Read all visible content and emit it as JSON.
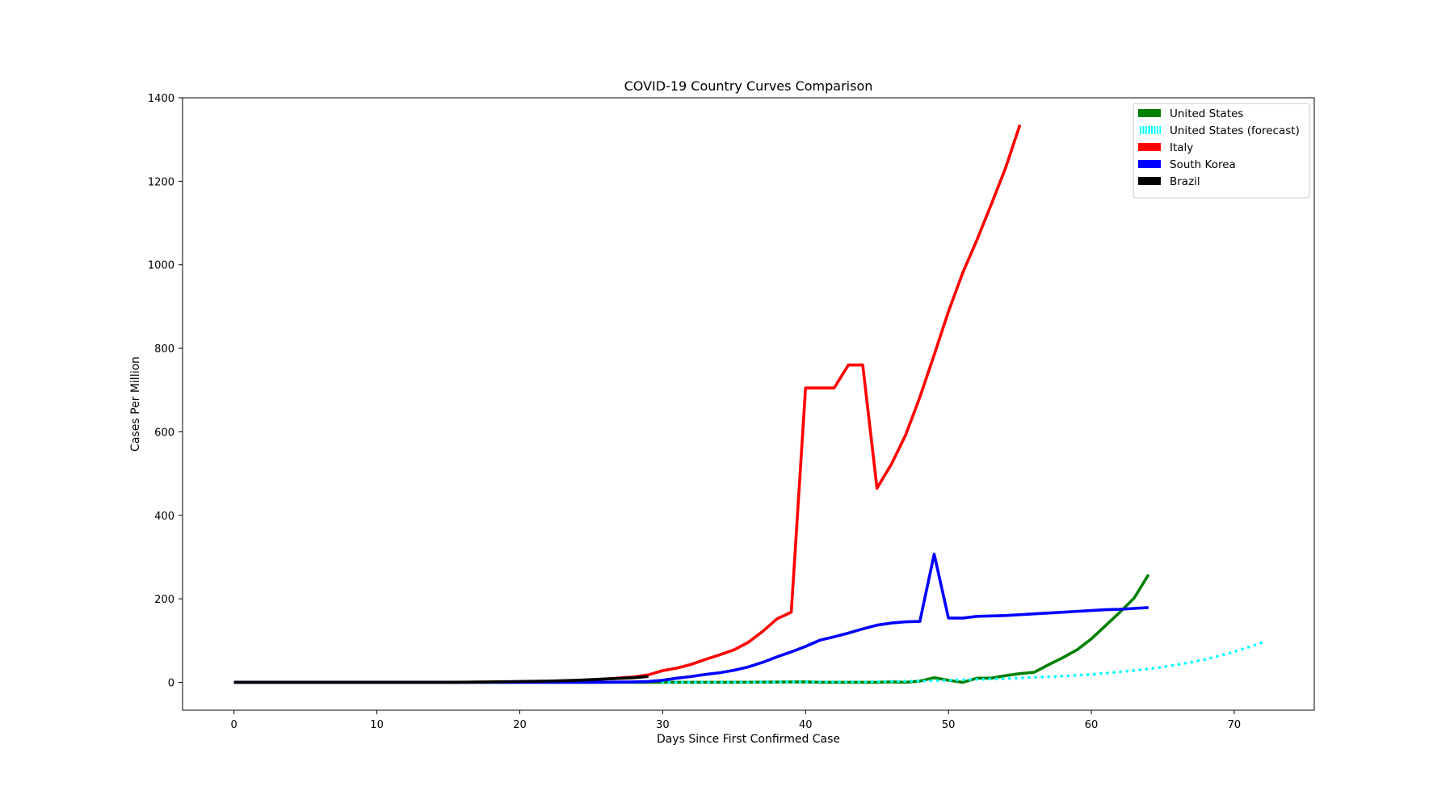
{
  "chart_data": {
    "type": "line",
    "title": "COVID-19 Country Curves Comparison",
    "xlabel": "Days Since First Confirmed Case",
    "ylabel": "Cases Per Million",
    "xlim": [
      -3.6,
      75.6
    ],
    "ylim": [
      -66.8,
      1400
    ],
    "xticks": [
      0,
      10,
      20,
      30,
      40,
      50,
      60,
      70
    ],
    "yticks": [
      0,
      200,
      400,
      600,
      800,
      1000,
      1200,
      1400
    ],
    "grid": false,
    "legend_position": "top-right",
    "series": [
      {
        "name": "United States",
        "color": "#008000",
        "style": "solid",
        "x": [
          0,
          5,
          10,
          15,
          20,
          25,
          30,
          35,
          40,
          41,
          42,
          43,
          44,
          45,
          46,
          47,
          48,
          49,
          50,
          51,
          52,
          53,
          54,
          55,
          56,
          57,
          58,
          59,
          60,
          61,
          62,
          63,
          64
        ],
        "y": [
          0,
          0,
          0,
          0,
          0,
          0,
          0,
          0,
          1,
          0,
          0,
          0,
          0,
          0,
          1,
          0,
          3,
          11,
          5,
          0,
          10,
          10,
          16,
          21,
          24,
          42,
          59,
          78,
          104,
          136,
          168,
          202,
          258
        ]
      },
      {
        "name": "United States (forecast)",
        "color": "#00ffff",
        "style": "dotted",
        "x": [
          30,
          35,
          40,
          44,
          46,
          48,
          50,
          52,
          54,
          56,
          58,
          60,
          62,
          64,
          66,
          68,
          70,
          72
        ],
        "y": [
          0,
          0,
          1,
          1,
          2,
          3,
          5,
          7,
          9,
          12,
          15,
          19,
          25,
          32,
          42,
          55,
          73,
          96
        ]
      },
      {
        "name": "Italy",
        "color": "#ff0000",
        "style": "solid",
        "x": [
          0,
          5,
          10,
          15,
          20,
          22,
          24,
          26,
          28,
          29,
          30,
          31,
          32,
          33,
          34,
          35,
          36,
          37,
          38,
          39,
          40,
          41,
          42,
          43,
          44,
          45,
          46,
          47,
          48,
          49,
          50,
          51,
          52,
          53,
          54,
          55
        ],
        "y": [
          0,
          0,
          0,
          0,
          1,
          2,
          4,
          8,
          13,
          18,
          28,
          34,
          43,
          55,
          66,
          78,
          96,
          122,
          152,
          168,
          705,
          705,
          705,
          760,
          760,
          465,
          522,
          592,
          683,
          784,
          888,
          981,
          1060,
          1145,
          1232,
          1335
        ]
      },
      {
        "name": "South Korea",
        "color": "#0000ff",
        "style": "solid",
        "x": [
          0,
          5,
          10,
          15,
          20,
          25,
          28,
          29,
          30,
          31,
          32,
          33,
          34,
          35,
          36,
          37,
          38,
          39,
          40,
          41,
          42,
          43,
          44,
          45,
          46,
          47,
          48,
          49,
          50,
          51,
          52,
          53,
          54,
          55,
          56,
          57,
          58,
          59,
          60,
          61,
          62,
          63,
          64
        ],
        "y": [
          0,
          0,
          0,
          0,
          0,
          0,
          1,
          2,
          5,
          10,
          14,
          19,
          23,
          29,
          37,
          48,
          61,
          73,
          86,
          101,
          109,
          118,
          128,
          137,
          142,
          145,
          146,
          307,
          154,
          154,
          158,
          159,
          160,
          162,
          164,
          166,
          168,
          170,
          172,
          174,
          175,
          177,
          179
        ]
      },
      {
        "name": "Brazil",
        "color": "#000000",
        "style": "solid",
        "x": [
          0,
          5,
          10,
          15,
          18,
          20,
          22,
          24,
          26,
          28,
          29
        ],
        "y": [
          0,
          0,
          0,
          0,
          1,
          2,
          3,
          5,
          8,
          11,
          14
        ]
      }
    ]
  }
}
